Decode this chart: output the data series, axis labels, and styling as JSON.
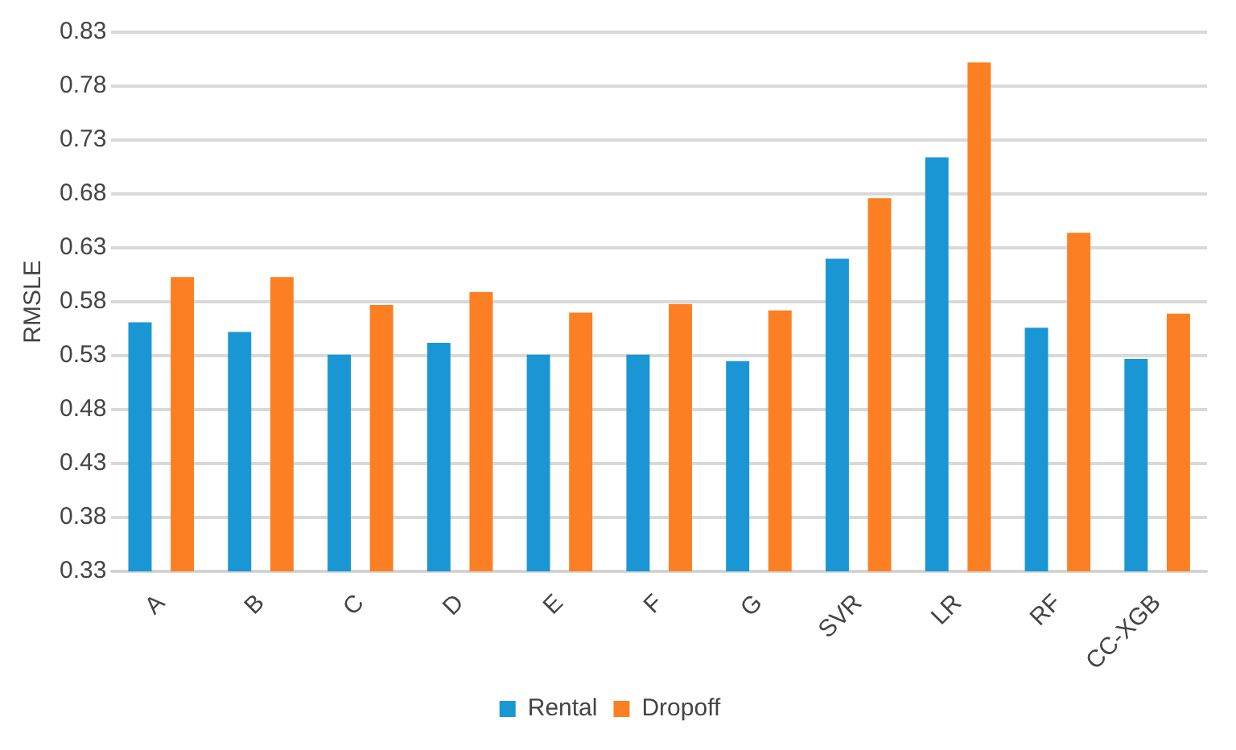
{
  "chart_data": {
    "type": "bar",
    "ylabel": "RMSLE",
    "categories": [
      "A",
      "B",
      "C",
      "D",
      "E",
      "F",
      "G",
      "SVR",
      "LR",
      "RF",
      "CC-XGB"
    ],
    "series": [
      {
        "name": "Rental",
        "color": "#1a96d4",
        "values": [
          0.561,
          0.552,
          0.531,
          0.542,
          0.531,
          0.531,
          0.525,
          0.62,
          0.714,
          0.556,
          0.527
        ]
      },
      {
        "name": "Dropoff",
        "color": "#fd7f23",
        "values": [
          0.603,
          0.603,
          0.577,
          0.589,
          0.57,
          0.578,
          0.572,
          0.676,
          0.802,
          0.644,
          0.569
        ]
      }
    ],
    "ylim": [
      0.33,
      0.83
    ],
    "yticks": [
      0.33,
      0.38,
      0.43,
      0.48,
      0.53,
      0.58,
      0.63,
      0.68,
      0.73,
      0.78,
      0.83
    ],
    "grid": "y",
    "legend": "bottom"
  }
}
